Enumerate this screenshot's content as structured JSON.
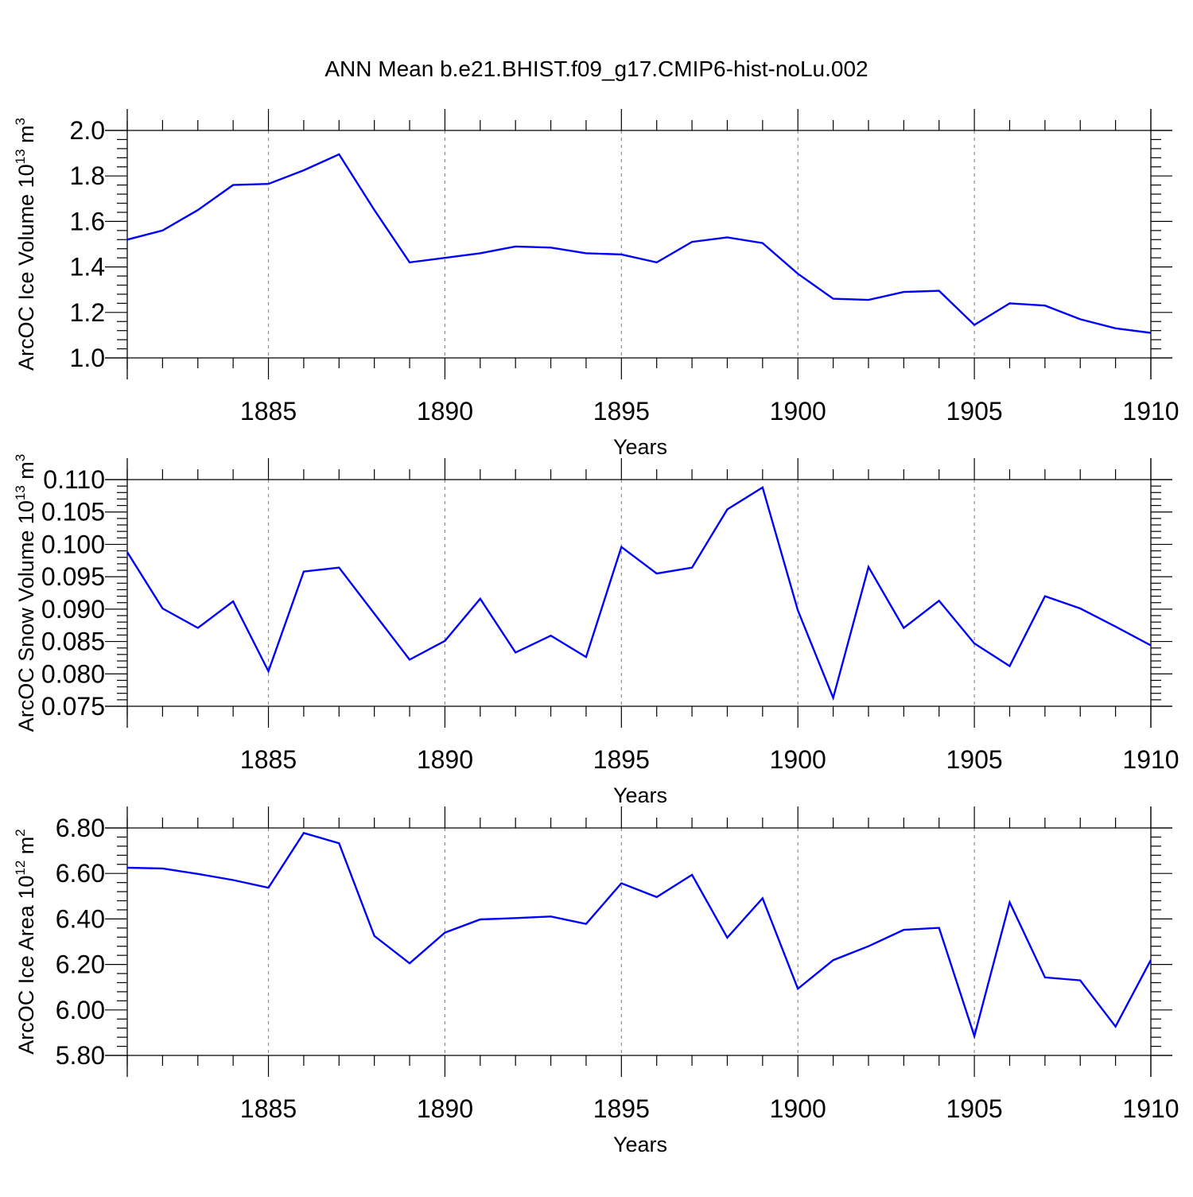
{
  "title": "ANN Mean b.e21.BHIST.f09_g17.CMIP6-hist-noLu.002",
  "colors": {
    "series": "#0000ff",
    "grid": "#8c8c8c",
    "axis": "#000000"
  },
  "chart_data": [
    {
      "type": "line",
      "ylabel": "ArcOC Ice Volume 10",
      "ylabel_sup": "13",
      "ylabel_unit": "m",
      "ylabel_unit_sup": "3",
      "xlabel": "Years",
      "xlim": [
        1881,
        1910
      ],
      "ylim": [
        1.0,
        2.0
      ],
      "xticks": [
        1885,
        1890,
        1895,
        1900,
        1905,
        1910
      ],
      "xtick_labels": [
        "1885",
        "1890",
        "1895",
        "1900",
        "1905",
        "1910"
      ],
      "yticks": [
        1.0,
        1.2,
        1.4,
        1.6,
        1.8,
        2.0
      ],
      "ytick_labels": [
        "1.0",
        "1.2",
        "1.4",
        "1.6",
        "1.8",
        "2.0"
      ],
      "grid": "vertical dashed at major x ticks",
      "series": [
        {
          "name": "ArcOC Ice Volume",
          "x": [
            1881,
            1882,
            1883,
            1884,
            1885,
            1886,
            1887,
            1888,
            1889,
            1890,
            1891,
            1892,
            1893,
            1894,
            1895,
            1896,
            1897,
            1898,
            1899,
            1900,
            1901,
            1902,
            1903,
            1904,
            1905,
            1906,
            1907,
            1908,
            1909,
            1910
          ],
          "values": [
            1.52,
            1.56,
            1.65,
            1.76,
            1.765,
            1.825,
            1.895,
            1.65,
            1.42,
            1.44,
            1.46,
            1.49,
            1.485,
            1.46,
            1.455,
            1.42,
            1.51,
            1.53,
            1.505,
            1.37,
            1.26,
            1.255,
            1.29,
            1.295,
            1.145,
            1.24,
            1.23,
            1.17,
            1.13,
            1.11
          ]
        }
      ]
    },
    {
      "type": "line",
      "ylabel": "ArcOC Snow Volume 10",
      "ylabel_sup": "13",
      "ylabel_unit": "m",
      "ylabel_unit_sup": "3",
      "xlabel": "Years",
      "xlim": [
        1881,
        1910
      ],
      "ylim": [
        0.075,
        0.11
      ],
      "xticks": [
        1885,
        1890,
        1895,
        1900,
        1905,
        1910
      ],
      "xtick_labels": [
        "1885",
        "1890",
        "1895",
        "1900",
        "1905",
        "1910"
      ],
      "yticks": [
        0.075,
        0.08,
        0.085,
        0.09,
        0.095,
        0.1,
        0.105,
        0.11
      ],
      "ytick_labels": [
        "0.075",
        "0.080",
        "0.085",
        "0.090",
        "0.095",
        "0.100",
        "0.105",
        "0.110"
      ],
      "grid": "vertical dashed at major x ticks",
      "series": [
        {
          "name": "ArcOC Snow Volume",
          "x": [
            1881,
            1882,
            1883,
            1884,
            1885,
            1886,
            1887,
            1888,
            1889,
            1890,
            1891,
            1892,
            1893,
            1894,
            1895,
            1896,
            1897,
            1898,
            1899,
            1900,
            1901,
            1902,
            1903,
            1904,
            1905,
            1906,
            1907,
            1908,
            1909,
            1910
          ],
          "values": [
            0.0988,
            0.0901,
            0.0871,
            0.0912,
            0.0804,
            0.0958,
            0.0964,
            0.0893,
            0.0822,
            0.0851,
            0.0916,
            0.0833,
            0.0859,
            0.0826,
            0.0996,
            0.0955,
            0.0964,
            0.1054,
            0.1088,
            0.0898,
            0.0763,
            0.0965,
            0.0871,
            0.0913,
            0.0847,
            0.0812,
            0.092,
            0.0901,
            0.0873,
            0.0844
          ]
        }
      ]
    },
    {
      "type": "line",
      "ylabel": "ArcOC Ice Area 10",
      "ylabel_sup": "12",
      "ylabel_unit": "m",
      "ylabel_unit_sup": "2",
      "xlabel": "Years",
      "xlim": [
        1881,
        1910
      ],
      "ylim": [
        5.8,
        6.8
      ],
      "xticks": [
        1885,
        1890,
        1895,
        1900,
        1905,
        1910
      ],
      "xtick_labels": [
        "1885",
        "1890",
        "1895",
        "1900",
        "1905",
        "1910"
      ],
      "yticks": [
        5.8,
        6.0,
        6.2,
        6.4,
        6.6,
        6.8
      ],
      "ytick_labels": [
        "5.80",
        "6.00",
        "6.20",
        "6.40",
        "6.60",
        "6.80"
      ],
      "grid": "vertical dashed at major x ticks",
      "series": [
        {
          "name": "ArcOC Ice Area",
          "x": [
            1881,
            1882,
            1883,
            1884,
            1885,
            1886,
            1887,
            1888,
            1889,
            1890,
            1891,
            1892,
            1893,
            1894,
            1895,
            1896,
            1897,
            1898,
            1899,
            1900,
            1901,
            1902,
            1903,
            1904,
            1905,
            1906,
            1907,
            1908,
            1909,
            1910
          ],
          "values": [
            6.625,
            6.622,
            6.598,
            6.571,
            6.537,
            6.778,
            6.733,
            6.325,
            6.205,
            6.34,
            6.398,
            6.404,
            6.411,
            6.378,
            6.557,
            6.496,
            6.594,
            6.318,
            6.491,
            6.093,
            6.219,
            6.28,
            6.352,
            6.361,
            5.885,
            6.473,
            6.143,
            6.13,
            5.927,
            6.22
          ]
        }
      ]
    }
  ]
}
